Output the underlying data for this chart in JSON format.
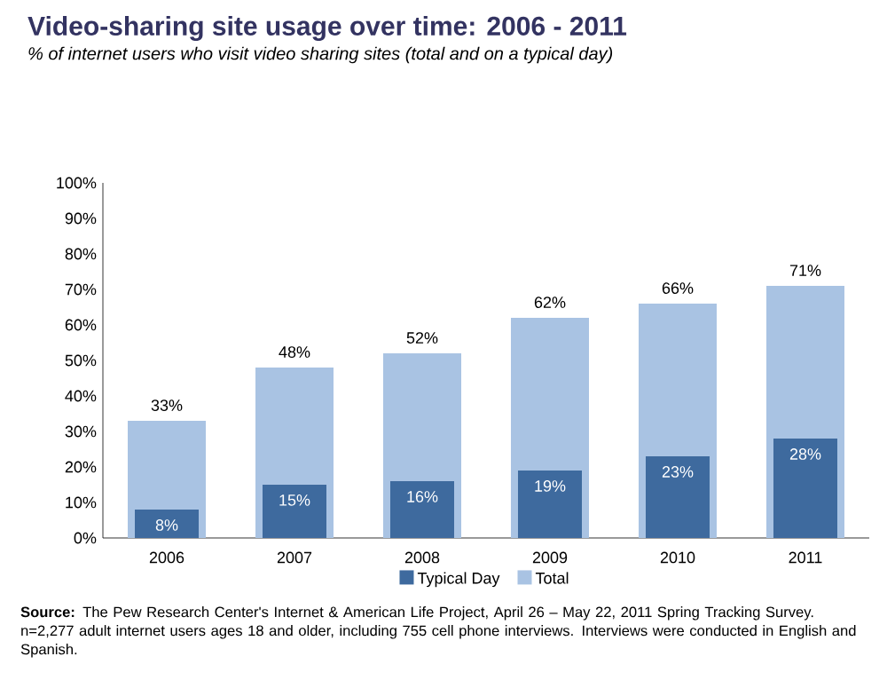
{
  "chart_data": {
    "type": "bar",
    "title": "Video-sharing site usage over time: 2006 - 2011",
    "subtitle": "% of internet users who visit video sharing sites (total and on a typical day)",
    "categories": [
      "2006",
      "2007",
      "2008",
      "2009",
      "2010",
      "2011"
    ],
    "series": [
      {
        "name": "Typical Day",
        "color": "#3e6a9e",
        "values": [
          8,
          15,
          16,
          19,
          23,
          28
        ],
        "value_labels": [
          "8%",
          "15%",
          "16%",
          "19%",
          "23%",
          "28%"
        ]
      },
      {
        "name": "Total",
        "color": "#a9c3e3",
        "values": [
          33,
          48,
          52,
          62,
          66,
          71
        ],
        "value_labels": [
          "33%",
          "48%",
          "52%",
          "62%",
          "66%",
          "71%"
        ]
      }
    ],
    "ylim": [
      0,
      100
    ],
    "yticks": [
      {
        "value": 0,
        "label": "0%"
      },
      {
        "value": 10,
        "label": "10%"
      },
      {
        "value": 20,
        "label": "20%"
      },
      {
        "value": 30,
        "label": "30%"
      },
      {
        "value": 40,
        "label": "40%"
      },
      {
        "value": 50,
        "label": "50%"
      },
      {
        "value": 60,
        "label": "60%"
      },
      {
        "value": 70,
        "label": "70%"
      },
      {
        "value": 80,
        "label": "80%"
      },
      {
        "value": 90,
        "label": "90%"
      },
      {
        "value": 100,
        "label": "100%"
      }
    ],
    "legend": "bottom",
    "grid": false,
    "annotations": [
      "**Source:** The Pew Research Center's Internet & American Life Project, April 26 – May 22, 2011 Spring Tracking Survey. n=2,277 adult internet users ages 18 and older, including 755 cell phone interviews. Interviews were conducted in English and Spanish."
    ]
  }
}
